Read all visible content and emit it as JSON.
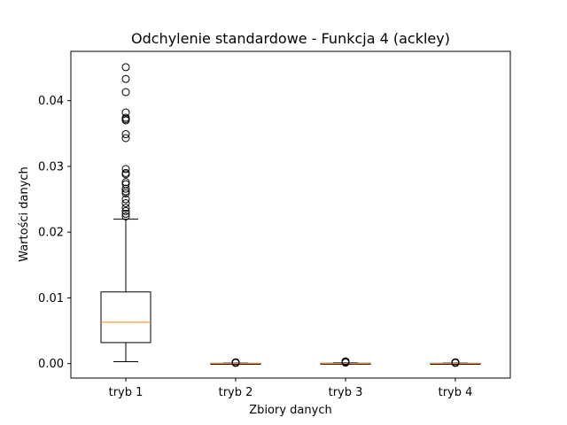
{
  "chart_data": {
    "type": "boxplot",
    "title": "Odchylenie standardowe - Funkcja 4 (ackley)",
    "xlabel": "Zbiory danych",
    "ylabel": "Wartości danych",
    "ylim": [
      -0.0022,
      0.0475
    ],
    "yticks": [
      {
        "value": 0.0,
        "label": "0.00"
      },
      {
        "value": 0.01,
        "label": "0.01"
      },
      {
        "value": 0.02,
        "label": "0.02"
      },
      {
        "value": 0.03,
        "label": "0.03"
      },
      {
        "value": 0.04,
        "label": "0.04"
      }
    ],
    "categories": [
      "tryb 1",
      "tryb 2",
      "tryb 3",
      "tryb 4"
    ],
    "boxes": [
      {
        "name": "tryb 1",
        "whisker_low": 0.0003,
        "q1": 0.0032,
        "median": 0.0063,
        "q3": 0.0109,
        "whisker_high": 0.022,
        "outliers": [
          0.0451,
          0.0433,
          0.0413,
          0.0382,
          0.0374,
          0.0372,
          0.037,
          0.0349,
          0.0343,
          0.0296,
          0.029,
          0.0288,
          0.0276,
          0.0273,
          0.0266,
          0.0262,
          0.0259,
          0.025,
          0.0244,
          0.0237,
          0.0232,
          0.0228,
          0.0224
        ]
      },
      {
        "name": "tryb 2",
        "whisker_low": 0.0,
        "q1": 0.0,
        "median": 2e-05,
        "q3": 4e-05,
        "whisker_high": 8e-05,
        "outliers": [
          0.0001,
          0.00015,
          0.0002
        ]
      },
      {
        "name": "tryb 3",
        "whisker_low": 0.0,
        "q1": 0.0,
        "median": 2e-05,
        "q3": 5e-05,
        "whisker_high": 0.0001,
        "outliers": [
          0.00015,
          0.00025,
          0.00035
        ]
      },
      {
        "name": "tryb 4",
        "whisker_low": 0.0,
        "q1": 0.0,
        "median": 2e-05,
        "q3": 4e-05,
        "whisker_high": 8e-05,
        "outliers": [
          0.0001,
          0.00015,
          0.0002
        ]
      }
    ],
    "colors": {
      "box": "#000000",
      "median": "#ff7f0e",
      "outlier": "#000000",
      "background": "#ffffff"
    }
  }
}
